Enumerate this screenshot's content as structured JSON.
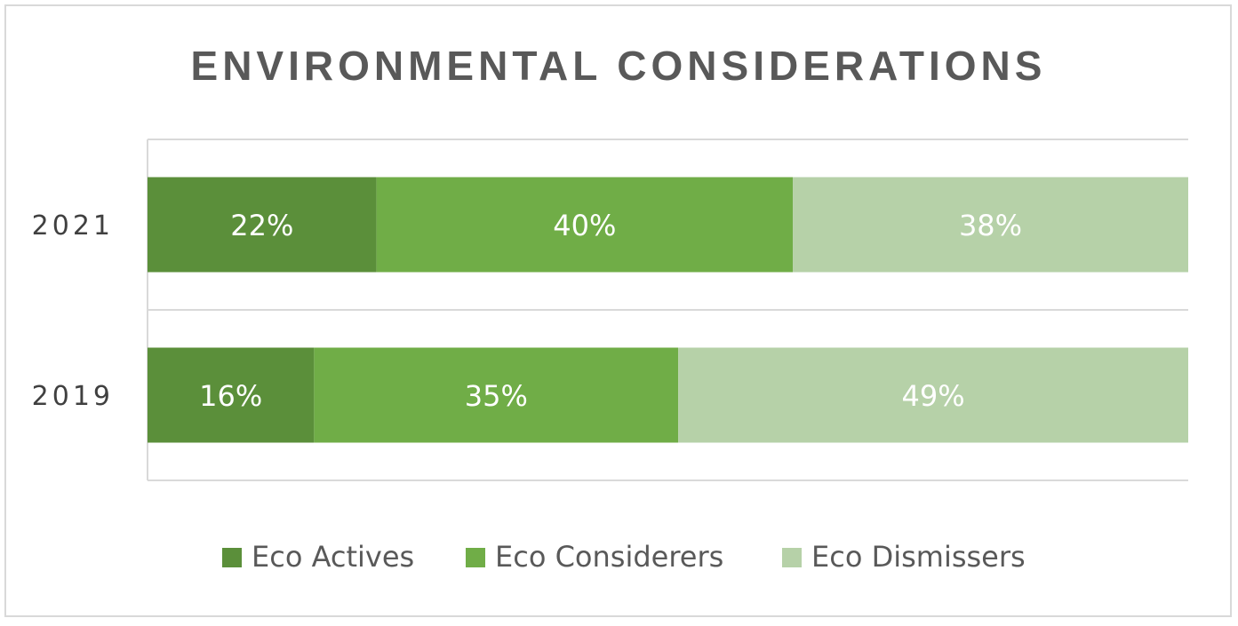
{
  "chart_data": {
    "type": "bar",
    "orientation": "horizontal",
    "stacked": true,
    "title": "ENVIRONMENTAL CONSIDERATIONS",
    "categories": [
      "2021",
      "2019"
    ],
    "series": [
      {
        "name": "Eco Actives",
        "values": [
          22,
          16
        ],
        "labels": [
          "22%",
          "16%"
        ],
        "color": "#5b8f3a"
      },
      {
        "name": "Eco Considerers",
        "values": [
          40,
          35
        ],
        "labels": [
          "40%",
          "35%"
        ],
        "color": "#70ad47"
      },
      {
        "name": "Eco Dismissers",
        "values": [
          38,
          49
        ],
        "labels": [
          "38%",
          "49%"
        ],
        "color": "#b6d1a8"
      }
    ],
    "xlim": [
      0,
      100
    ],
    "grid": true,
    "legend": "bottom"
  }
}
